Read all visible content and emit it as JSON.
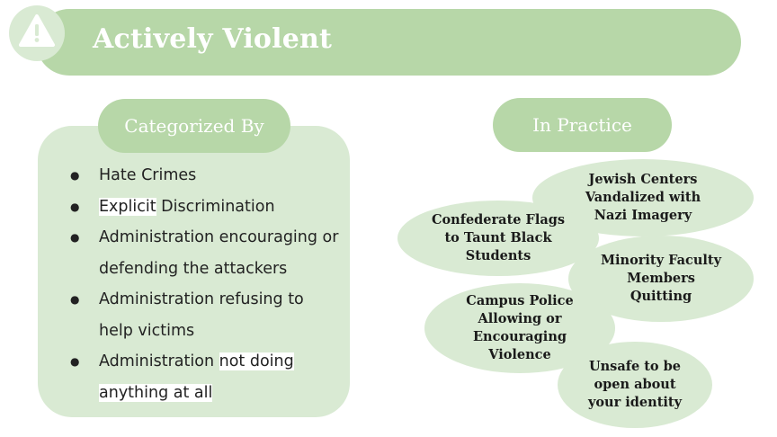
{
  "title": "Actively Violent",
  "colors": {
    "accent": "#b7d7a8",
    "light": "#d9ead3",
    "text": "#222222",
    "title_text": "#ffffff"
  },
  "icons": {
    "header": "warning-icon"
  },
  "left_section": {
    "heading": "Categorized By",
    "items": [
      {
        "parts": [
          "Hate Crimes"
        ]
      },
      {
        "parts": [
          "Explicit",
          " Discrimination"
        ]
      },
      {
        "parts": [
          "Administration encouraging or defending the attackers"
        ]
      },
      {
        "parts": [
          "Administration refusing to help victims"
        ]
      },
      {
        "parts": [
          "Administration ",
          "not doing anything at all"
        ]
      }
    ]
  },
  "right_section": {
    "heading": "In Practice",
    "examples": [
      {
        "lines": [
          "Jewish Centers",
          "Vandalized with",
          "Nazi Imagery"
        ]
      },
      {
        "lines": [
          "Confederate Flags",
          "to Taunt Black",
          "Students"
        ]
      },
      {
        "lines": [
          "Minority Faculty",
          "Members",
          "Quitting"
        ]
      },
      {
        "lines": [
          "Campus Police",
          "Allowing or",
          "Encouraging",
          "Violence"
        ]
      },
      {
        "lines": [
          "Unsafe to be",
          "open about",
          "your identity"
        ]
      }
    ]
  }
}
